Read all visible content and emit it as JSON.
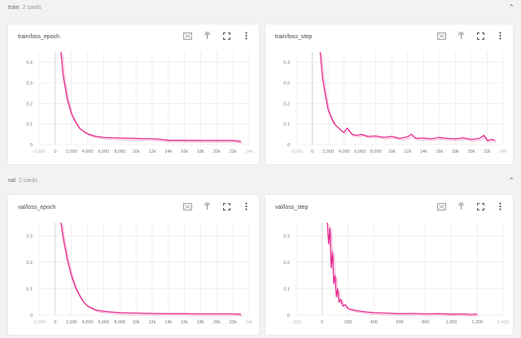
{
  "sections": [
    {
      "name": "train",
      "count": "2 cards"
    },
    {
      "name": "val",
      "count": "2 cards"
    }
  ],
  "colors": {
    "series": "#e4268e",
    "series_smoothed": "#f4a6cf",
    "grid": "#e6e6e6"
  },
  "icons": {
    "expand": "expand-icon",
    "pin": "pin-icon",
    "fullscreen": "fullscreen-icon",
    "more": "more-vert-icon",
    "collapse": "chevron-up-icon"
  },
  "cards": [
    {
      "title": "train/loss_epoch"
    },
    {
      "title": "train/loss_step"
    },
    {
      "title": "val/loss_epoch"
    },
    {
      "title": "val/loss_step"
    }
  ],
  "chart_data": [
    {
      "type": "line",
      "title": "train/loss_epoch",
      "xlim": [
        -2000,
        24000
      ],
      "ylim": [
        0,
        0.45
      ],
      "x_ticks": [
        -2000,
        0,
        2000,
        4000,
        6000,
        8000,
        10000,
        12000,
        14000,
        16000,
        18000,
        20000,
        22000,
        24000
      ],
      "x_tick_labels": [
        "-2,000",
        "0",
        "2,000",
        "4,000",
        "6,000",
        "8,000",
        "10k",
        "12k",
        "14k",
        "16k",
        "18k",
        "20k",
        "22k",
        "24k"
      ],
      "y_ticks": [
        0,
        0.1,
        0.2,
        0.3,
        0.4
      ],
      "y_tick_labels": [
        "0",
        "0.1",
        "0.2",
        "0.3",
        "0.4"
      ],
      "grid": true,
      "series": [
        {
          "x": [
            700,
            1000,
            1500,
            2000,
            2500,
            3000,
            3500,
            4000,
            5000,
            6000,
            7000,
            8000,
            10000,
            12000,
            13000,
            14000,
            16000,
            18000,
            20000,
            22000,
            23000
          ],
          "values": [
            0.45,
            0.33,
            0.22,
            0.15,
            0.11,
            0.08,
            0.065,
            0.053,
            0.04,
            0.035,
            0.033,
            0.032,
            0.03,
            0.028,
            0.026,
            0.021,
            0.021,
            0.02,
            0.02,
            0.02,
            0.015
          ]
        }
      ]
    },
    {
      "type": "line",
      "title": "train/loss_step",
      "xlim": [
        -2000,
        24000
      ],
      "ylim": [
        0,
        0.45
      ],
      "x_ticks": [
        -2000,
        0,
        2000,
        4000,
        6000,
        8000,
        10000,
        12000,
        14000,
        16000,
        18000,
        20000,
        22000,
        24000
      ],
      "x_tick_labels": [
        "-2,000",
        "0",
        "2,000",
        "4,000",
        "6,000",
        "8,000",
        "10k",
        "12k",
        "14k",
        "16k",
        "18k",
        "20k",
        "22k",
        "24k"
      ],
      "y_ticks": [
        0,
        0.1,
        0.2,
        0.3,
        0.4
      ],
      "y_tick_labels": [
        "0",
        "0.1",
        "0.2",
        "0.3",
        "0.4"
      ],
      "grid": true,
      "series": [
        {
          "x": [
            1000,
            1300,
            1700,
            2000,
            2400,
            2800,
            3200,
            3600,
            4000,
            4400,
            5000,
            5600,
            6200,
            7000,
            8000,
            9000,
            10000,
            11000,
            12000,
            12500,
            13000,
            14000,
            15000,
            16000,
            17000,
            18000,
            19000,
            20000,
            21000,
            21600,
            22000,
            22600,
            23000
          ],
          "values": [
            0.45,
            0.32,
            0.23,
            0.17,
            0.13,
            0.1,
            0.085,
            0.07,
            0.06,
            0.08,
            0.05,
            0.045,
            0.05,
            0.04,
            0.042,
            0.035,
            0.04,
            0.03,
            0.038,
            0.05,
            0.03,
            0.032,
            0.028,
            0.035,
            0.03,
            0.028,
            0.033,
            0.025,
            0.03,
            0.045,
            0.02,
            0.025,
            0.02
          ]
        }
      ]
    },
    {
      "type": "line",
      "title": "val/loss_epoch",
      "xlim": [
        -2000,
        24000
      ],
      "ylim": [
        0,
        0.35
      ],
      "x_ticks": [
        -2000,
        0,
        2000,
        4000,
        6000,
        8000,
        10000,
        12000,
        14000,
        16000,
        18000,
        20000,
        22000,
        24000
      ],
      "x_tick_labels": [
        "-2,000",
        "0",
        "2,000",
        "4,000",
        "6,000",
        "8,000",
        "10k",
        "12k",
        "14k",
        "16k",
        "18k",
        "20k",
        "22k",
        "24k"
      ],
      "y_ticks": [
        0,
        0.1,
        0.2,
        0.3
      ],
      "y_tick_labels": [
        "0",
        "0.1",
        "0.2",
        "0.3"
      ],
      "grid": true,
      "series": [
        {
          "x": [
            700,
            1000,
            1500,
            2000,
            2500,
            3000,
            3500,
            4000,
            5000,
            6000,
            7000,
            8000,
            10000,
            12000,
            14000,
            16000,
            18000,
            20000,
            22000,
            23000
          ],
          "values": [
            0.35,
            0.29,
            0.21,
            0.15,
            0.105,
            0.075,
            0.05,
            0.035,
            0.02,
            0.015,
            0.012,
            0.01,
            0.008,
            0.007,
            0.006,
            0.006,
            0.005,
            0.005,
            0.005,
            0.004
          ]
        }
      ]
    },
    {
      "type": "line",
      "title": "val/loss_step",
      "xlim": [
        -200,
        1400
      ],
      "ylim": [
        0,
        0.35
      ],
      "x_ticks": [
        -200,
        0,
        200,
        400,
        600,
        800,
        1000,
        1200,
        1400
      ],
      "x_tick_labels": [
        "-200",
        "0",
        "200",
        "400",
        "600",
        "800",
        "1,000",
        "1,200",
        "1,400"
      ],
      "y_ticks": [
        0,
        0.1,
        0.2,
        0.3
      ],
      "y_tick_labels": [
        "0",
        "0.1",
        "0.2",
        "0.3"
      ],
      "grid": true,
      "series": [
        {
          "x": [
            40,
            50,
            60,
            70,
            80,
            90,
            100,
            110,
            120,
            130,
            145,
            160,
            180,
            200,
            230,
            260,
            300,
            350,
            400,
            500,
            600,
            700,
            800,
            900,
            1000,
            1100,
            1150,
            1200
          ],
          "values": [
            0.35,
            0.27,
            0.33,
            0.18,
            0.24,
            0.12,
            0.15,
            0.07,
            0.1,
            0.05,
            0.06,
            0.035,
            0.04,
            0.025,
            0.022,
            0.018,
            0.015,
            0.012,
            0.01,
            0.008,
            0.006,
            0.007,
            0.005,
            0.006,
            0.004,
            0.005,
            0.003,
            0.004
          ]
        }
      ]
    }
  ]
}
